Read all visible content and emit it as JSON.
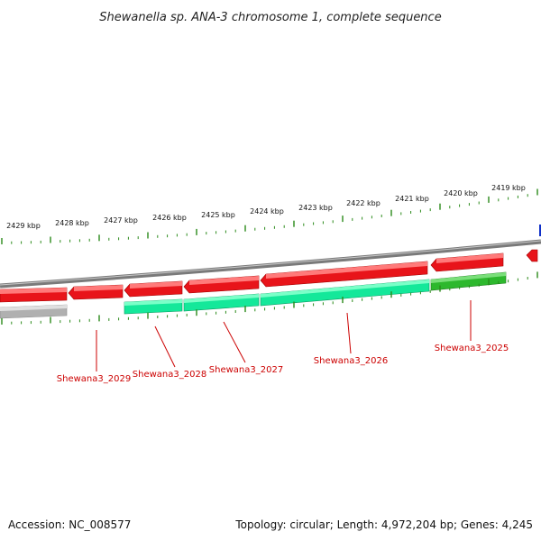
{
  "title": "Shewanella sp. ANA-3 chromosome 1, complete sequence",
  "footer": {
    "accession": "Accession: NC_008577",
    "summary": "Topology: circular; Length: 4,972,204 bp; Genes: 4,245"
  },
  "ruler": {
    "labels": [
      "2429 kbp",
      "2428 kbp",
      "2427 kbp",
      "2426 kbp",
      "2425 kbp",
      "2424 kbp",
      "2423 kbp",
      "2422 kbp",
      "2421 kbp",
      "2420 kbp",
      "2419 kbp"
    ]
  },
  "genes": [
    {
      "locus": "Shewana3_2029"
    },
    {
      "locus": "Shewana3_2028"
    },
    {
      "locus": "Shewana3_2027"
    },
    {
      "locus": "Shewana3_2026"
    },
    {
      "locus": "Shewana3_2025"
    }
  ],
  "colors": {
    "cds": "#e8141a",
    "gene": "#14e89a",
    "gene_green": "#2db82d",
    "pseudo": "#b0b0b0",
    "backbone": "#888888",
    "ticks": "#2a8a1a",
    "gene_label": "#cc0000",
    "marker": "#1030c8"
  }
}
